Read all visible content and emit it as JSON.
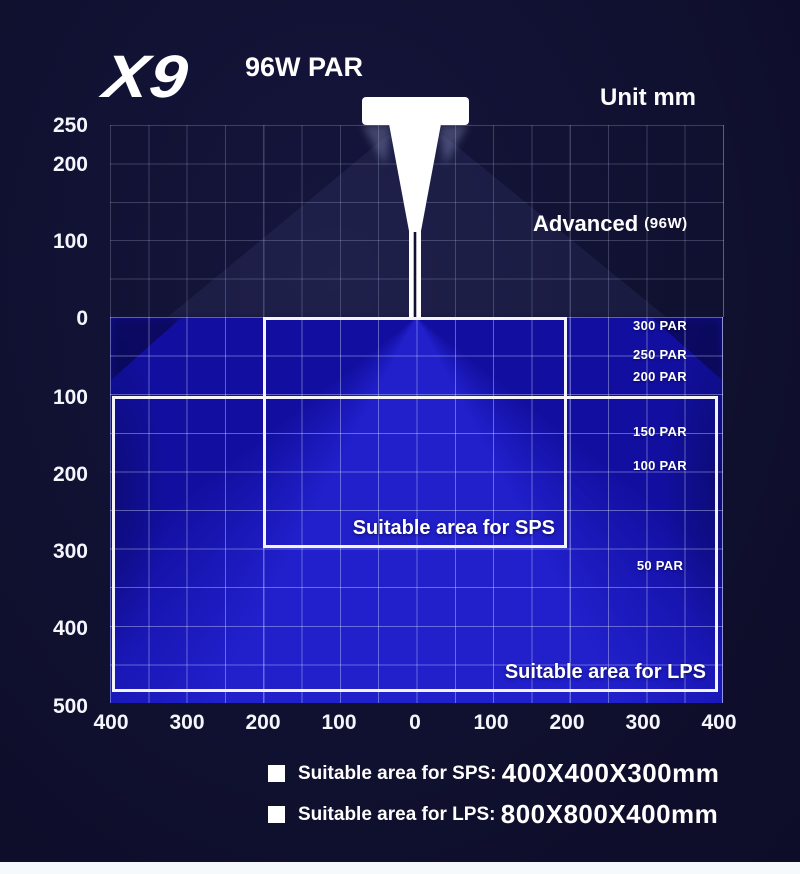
{
  "header": {
    "logo": "X9",
    "model_power": "96W PAR",
    "unit": "Unit mm"
  },
  "fixture": {
    "label": "Advanced",
    "power": "(96W)"
  },
  "chart_data": {
    "type": "area",
    "title": "X9 96W PAR",
    "unit": "mm",
    "x_axis": {
      "tick_labels": [
        400,
        300,
        200,
        100,
        0,
        100,
        200,
        300,
        400
      ],
      "range_mm": [
        -400,
        400
      ]
    },
    "y_axis_above_water": {
      "tick_labels": [
        250,
        200,
        100,
        0
      ],
      "range_mm": [
        0,
        250
      ]
    },
    "y_axis_below_water": {
      "tick_labels": [
        100,
        200,
        300,
        400,
        500
      ],
      "range_mm": [
        0,
        500
      ]
    },
    "grid_step_mm": 50,
    "par_levels": [
      {
        "label": "300 PAR",
        "depth_mm": 10
      },
      {
        "label": "250 PAR",
        "depth_mm": 48
      },
      {
        "label": "200 PAR",
        "depth_mm": 77
      },
      {
        "label": "150 PAR",
        "depth_mm": 148
      },
      {
        "label": "100 PAR",
        "depth_mm": 192
      },
      {
        "label": "50 PAR",
        "depth_mm": 322
      }
    ],
    "zones": [
      {
        "id": "sps",
        "label": "Suitable area for SPS",
        "x_mm": [
          -200,
          200
        ],
        "depth_mm": [
          0,
          300
        ]
      },
      {
        "id": "lps",
        "label": "Suitable area for LPS",
        "x_mm": [
          -400,
          400
        ],
        "depth_mm": [
          100,
          500
        ]
      }
    ]
  },
  "legend": {
    "items": [
      {
        "label": "Suitable area for SPS: ",
        "value": "400X400X300mm"
      },
      {
        "label": "Suitable area for LPS: ",
        "value": "800X800X400mm"
      }
    ]
  },
  "colors": {
    "background": "#101030",
    "water_base": "#120fa0",
    "water_bright": "#2d2dee",
    "water_dark": "#060630",
    "zone_border": "#f3f3f8",
    "text": "#ffffff",
    "bottom_strip": "#f6f9fc"
  }
}
